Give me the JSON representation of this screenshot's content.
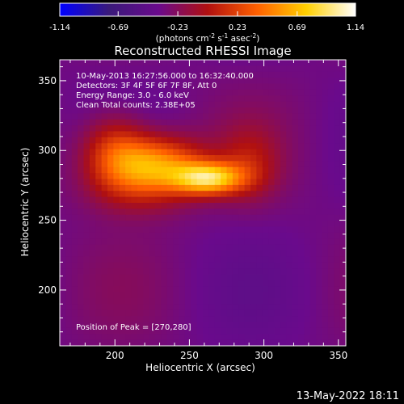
{
  "chart_data": {
    "type": "heatmap",
    "title": "Reconstructed RHESSI Image",
    "xlabel": "Heliocentric X (arcsec)",
    "ylabel": "Heliocentric Y (arcsec)",
    "xlim": [
      163,
      355
    ],
    "ylim": [
      160,
      365
    ],
    "x_ticks": [
      200,
      250,
      300,
      350
    ],
    "y_ticks": [
      200,
      250,
      300,
      350
    ],
    "colorbar": {
      "range": [
        -1.14,
        1.14
      ],
      "ticks": [
        "-1.14",
        "-0.69",
        "-0.23",
        "0.23",
        "0.69",
        "1.14"
      ],
      "unit_parts": [
        "(photons cm",
        "-2",
        " s",
        "-1",
        " asec",
        "-2",
        ")"
      ],
      "colors": [
        "#0000ff",
        "#3a1a7a",
        "#6a0a8c",
        "#b01010",
        "#ff6000",
        "#ffd000",
        "#ffffff"
      ]
    },
    "annotations": [
      "10-May-2013 16:27:56.000 to 16:32:40.000",
      "Detectors: 3F 4F 5F 6F 7F 8F, Att 0",
      "Energy Range: 3.0 - 6.0 keV",
      "Clean    Total counts: 2.38E+05"
    ],
    "peak_label": "Position of Peak = [270,280]",
    "peak": [
      270,
      280
    ],
    "emission_sources": [
      {
        "x": 263,
        "y": 280,
        "sx": 16,
        "sy": 8,
        "amp": 1.05
      },
      {
        "x": 228,
        "y": 290,
        "sx": 22,
        "sy": 14,
        "amp": 0.85
      },
      {
        "x": 200,
        "y": 300,
        "sx": 16,
        "sy": 18,
        "amp": 0.55
      },
      {
        "x": 215,
        "y": 272,
        "sx": 25,
        "sy": 14,
        "amp": 0.3
      },
      {
        "x": 290,
        "y": 290,
        "sx": 14,
        "sy": 18,
        "amp": 0.3
      }
    ],
    "background_level": -0.35
  },
  "footer": {
    "timestamp": "13-May-2022 18:11"
  }
}
